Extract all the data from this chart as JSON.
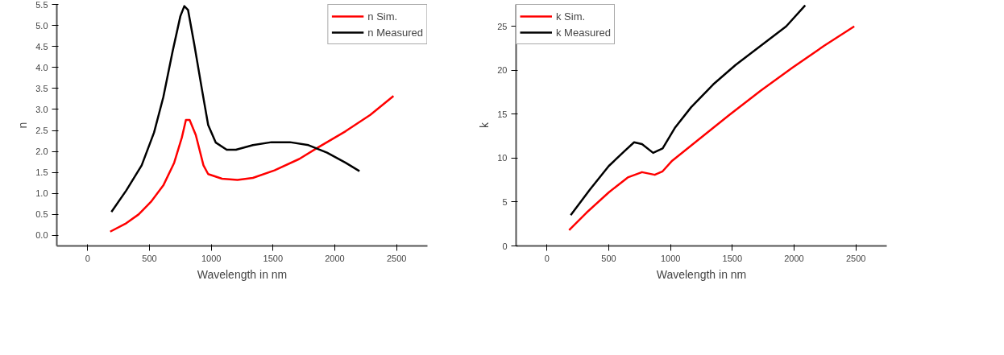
{
  "chart_data": [
    {
      "type": "line",
      "xlabel": "Wavelength in nm",
      "ylabel": "n",
      "xlim": [
        -250,
        2750
      ],
      "ylim": [
        -0.25,
        5.5
      ],
      "xticks": [
        0,
        500,
        1000,
        1500,
        2000,
        2500
      ],
      "yticks": [
        {
          "value": 0,
          "label": "0.0"
        },
        0.5,
        {
          "value": 1,
          "label": "1.0"
        },
        1.5,
        {
          "value": 2,
          "label": "2.0"
        },
        2.5,
        {
          "value": 3,
          "label": "3.0"
        },
        3.5,
        {
          "value": 4,
          "label": "4.0"
        },
        4.5,
        {
          "value": 5,
          "label": "5.0"
        },
        5.5
      ],
      "legend": "top right",
      "grid": false,
      "series": [
        {
          "name": "n Sim.",
          "color": "#ff0000",
          "x": [
            182,
            312,
            412,
            512,
            612,
            700,
            762,
            795,
            825,
            875,
            937,
            975,
            1087,
            1212,
            1337,
            1512,
            1712,
            1862,
            2087,
            2287,
            2475
          ],
          "values": [
            0.09,
            0.29,
            0.5,
            0.8,
            1.19,
            1.73,
            2.33,
            2.75,
            2.75,
            2.39,
            1.67,
            1.46,
            1.35,
            1.32,
            1.37,
            1.55,
            1.82,
            2.09,
            2.48,
            2.87,
            3.32
          ]
        },
        {
          "name": "n Measured",
          "color": "#000000",
          "x": [
            192,
            312,
            437,
            537,
            612,
            687,
            750,
            782,
            812,
            862,
            925,
            975,
            1037,
            1125,
            1200,
            1337,
            1487,
            1637,
            1787,
            1937,
            2087,
            2200
          ],
          "values": [
            0.56,
            1.07,
            1.67,
            2.45,
            3.29,
            4.38,
            5.22,
            5.46,
            5.37,
            4.56,
            3.47,
            2.63,
            2.21,
            2.04,
            2.04,
            2.15,
            2.22,
            2.22,
            2.15,
            1.97,
            1.73,
            1.53
          ]
        }
      ]
    },
    {
      "type": "line",
      "xlabel": "Wavelength in nm",
      "ylabel": "k",
      "xlim": [
        -250,
        2750
      ],
      "ylim": [
        0,
        27.5
      ],
      "xticks": [
        0,
        500,
        1000,
        1500,
        2000,
        2500
      ],
      "yticks": [
        0,
        5,
        10,
        15,
        20,
        25
      ],
      "legend": "top left",
      "grid": false,
      "series": [
        {
          "name": "k Sim.",
          "color": "#ff0000",
          "x": [
            179,
            321,
            500,
            654,
            769,
            872,
            936,
            1013,
            1218,
            1474,
            1731,
            1987,
            2244,
            2487
          ],
          "values": [
            1.8,
            3.8,
            6.1,
            7.8,
            8.4,
            8.1,
            8.5,
            9.7,
            12.0,
            14.9,
            17.7,
            20.3,
            22.8,
            25.0
          ]
        },
        {
          "name": "k Measured",
          "color": "#000000",
          "x": [
            192,
            346,
            500,
            628,
            705,
            769,
            859,
            936,
            1038,
            1167,
            1346,
            1526,
            1731,
            1936,
            2090
          ],
          "values": [
            3.5,
            6.4,
            9.1,
            10.8,
            11.8,
            11.6,
            10.6,
            11.1,
            13.5,
            15.8,
            18.4,
            20.6,
            22.8,
            25.0,
            27.4
          ]
        }
      ]
    }
  ]
}
